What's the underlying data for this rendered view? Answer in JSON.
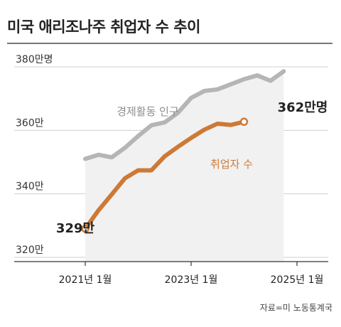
{
  "title": "미국 애리조나주 취업자 수 추이",
  "source": "자료=미 노동통계국",
  "chart_data": {
    "type": "line",
    "ylim": [
      318,
      382
    ],
    "yticks": [
      {
        "value": 380,
        "label": "380만명"
      },
      {
        "value": 360,
        "label": "360만"
      },
      {
        "value": 340,
        "label": "340만"
      },
      {
        "value": 320,
        "label": "320만"
      }
    ],
    "xticks": [
      {
        "value": "2021-01",
        "label": "2021년 1월"
      },
      {
        "value": "2023-01",
        "label": "2023년 1월"
      },
      {
        "value": "2025-01",
        "label": "2025년 1월"
      }
    ],
    "x": [
      "2021-01",
      "2021-04",
      "2021-07",
      "2021-10",
      "2022-01",
      "2022-04",
      "2022-07",
      "2022-10",
      "2023-01",
      "2023-04",
      "2023-07",
      "2023-10",
      "2024-01",
      "2024-04",
      "2024-07",
      "2024-10",
      "2025-01",
      "2025-02"
    ],
    "series": [
      {
        "name": "경제활동 인구",
        "color": "#b5b5b5",
        "values": [
          351,
          352.3,
          351.5,
          354.5,
          358.2,
          361.6,
          362.5,
          365.5,
          370.2,
          372.4,
          372.9,
          374.5,
          376.1,
          377.3,
          375.6,
          378.6,
          null,
          null
        ],
        "label": "경제활동 인구"
      },
      {
        "name": "취업자 수",
        "color": "#cc7a36",
        "values": [
          329,
          334.8,
          339.8,
          344.9,
          347.4,
          347.4,
          351.8,
          354.8,
          357.6,
          360.2,
          362.1,
          361.7,
          362.7,
          null,
          null,
          null,
          null,
          null
        ],
        "label": "취업자 수",
        "start_label": "329만",
        "end_label": "362만명"
      }
    ]
  }
}
